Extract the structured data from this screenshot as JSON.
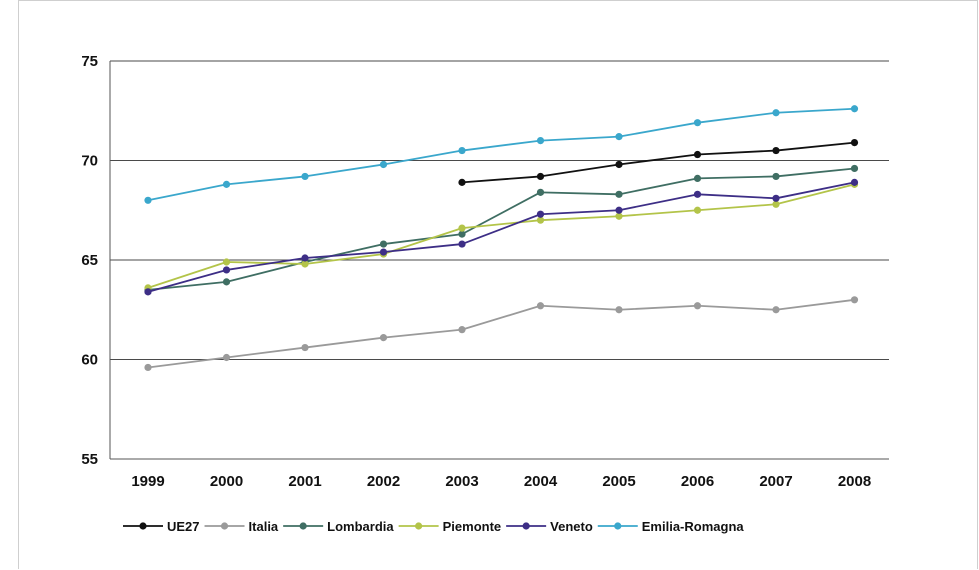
{
  "chart_data": {
    "type": "line",
    "title": "",
    "xlabel": "",
    "ylabel": "",
    "x": [
      "1999",
      "2000",
      "2001",
      "2002",
      "2003",
      "2004",
      "2005",
      "2006",
      "2007",
      "2008"
    ],
    "ylim": [
      55,
      75
    ],
    "yticks": [
      55,
      60,
      65,
      70,
      75
    ],
    "grid": "horizontal",
    "legend": "bottom",
    "series": [
      {
        "name": "UE27",
        "color": "#111111",
        "values": [
          null,
          null,
          null,
          null,
          68.9,
          69.2,
          69.8,
          70.3,
          70.5,
          70.9
        ]
      },
      {
        "name": "Italia",
        "color": "#9a9a9a",
        "values": [
          59.6,
          60.1,
          60.6,
          61.1,
          61.5,
          62.7,
          62.5,
          62.7,
          62.5,
          63.0
        ]
      },
      {
        "name": "Lombardia",
        "color": "#3f6e63",
        "values": [
          63.5,
          63.9,
          64.9,
          65.8,
          66.3,
          68.4,
          68.3,
          69.1,
          69.2,
          69.6
        ]
      },
      {
        "name": "Piemonte",
        "color": "#b3c449",
        "values": [
          63.6,
          64.9,
          64.8,
          65.3,
          66.6,
          67.0,
          67.2,
          67.5,
          67.8,
          68.8
        ]
      },
      {
        "name": "Veneto",
        "color": "#3d2e86",
        "values": [
          63.4,
          64.5,
          65.1,
          65.4,
          65.8,
          67.3,
          67.5,
          68.3,
          68.1,
          68.9
        ]
      },
      {
        "name": "Emilia-Romagna",
        "color": "#3aa7cc",
        "values": [
          68.0,
          68.8,
          69.2,
          69.8,
          70.5,
          71.0,
          71.2,
          71.9,
          72.4,
          72.6
        ]
      }
    ]
  }
}
